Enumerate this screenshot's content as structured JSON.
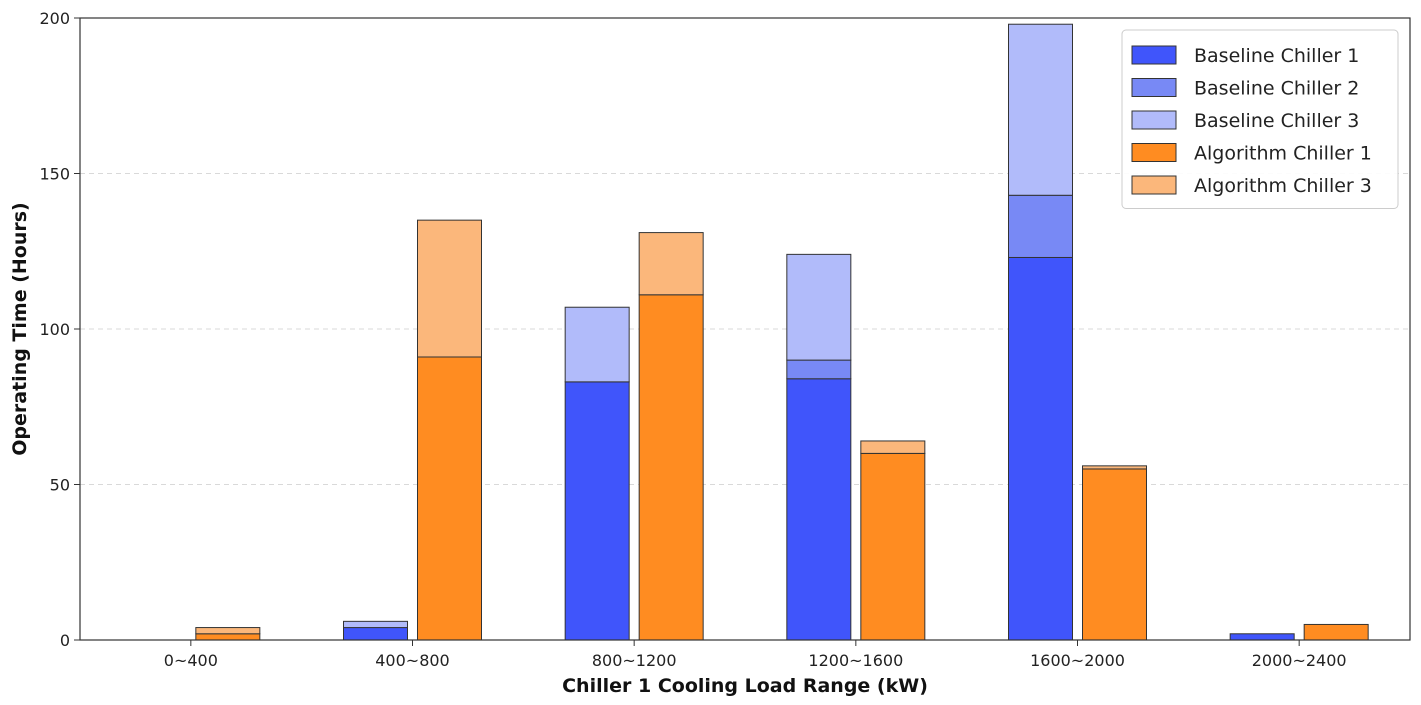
{
  "chart_data": {
    "type": "bar",
    "stacked": true,
    "grouped": true,
    "xlabel": "Chiller 1 Cooling Load Range (kW)",
    "ylabel": "Operating Time (Hours)",
    "ylim": [
      0,
      200
    ],
    "yticks": [
      0,
      50,
      100,
      150,
      200
    ],
    "grid": "horizontal dashed",
    "legend_position": "top-right",
    "categories": [
      "0~400",
      "400~800",
      "800~1200",
      "1200~1600",
      "1600~2000",
      "2000~2400"
    ],
    "groups": [
      {
        "group": "Baseline",
        "series": [
          {
            "name": "Baseline Chiller 1",
            "color": "#4055fb",
            "values": [
              0,
              4,
              83,
              84,
              123,
              2
            ]
          },
          {
            "name": "Baseline Chiller 2",
            "color": "#7889f5",
            "values": [
              0,
              0,
              0,
              6,
              20,
              0
            ]
          },
          {
            "name": "Baseline Chiller 3",
            "color": "#b1bbfa",
            "values": [
              0,
              2,
              24,
              34,
              55,
              0
            ]
          }
        ]
      },
      {
        "group": "Algorithm",
        "series": [
          {
            "name": "Algorithm Chiller 1",
            "color": "#ff8c21",
            "values": [
              2,
              91,
              111,
              60,
              55,
              5
            ]
          },
          {
            "name": "Algorithm Chiller 3",
            "color": "#fbb77b",
            "values": [
              2,
              44,
              20,
              4,
              1,
              0
            ]
          }
        ]
      }
    ]
  }
}
